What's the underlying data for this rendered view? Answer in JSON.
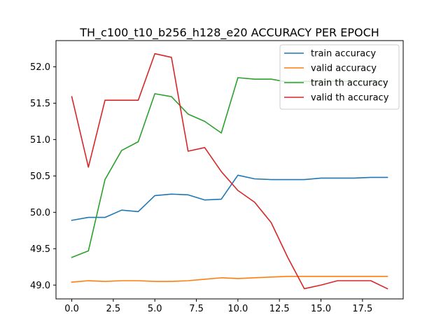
{
  "chart_data": {
    "type": "line",
    "title": "TH_c100_t10_b256_h128_e20 ACCURACY PER EPOCH",
    "xlabel": "",
    "ylabel": "",
    "x": [
      0,
      1,
      2,
      3,
      4,
      5,
      6,
      7,
      8,
      9,
      10,
      11,
      12,
      13,
      14,
      15,
      16,
      17,
      18,
      19
    ],
    "xlim": [
      -0.95,
      19.95
    ],
    "ylim": [
      48.81,
      52.36
    ],
    "xticks": [
      0.0,
      2.5,
      5.0,
      7.5,
      10.0,
      12.5,
      15.0,
      17.5
    ],
    "xtick_labels": [
      "0.0",
      "2.5",
      "5.0",
      "7.5",
      "10.0",
      "12.5",
      "15.0",
      "17.5"
    ],
    "yticks": [
      49.0,
      49.5,
      50.0,
      50.5,
      51.0,
      51.5,
      52.0
    ],
    "ytick_labels": [
      "49.0",
      "49.5",
      "50.0",
      "50.5",
      "51.0",
      "51.5",
      "52.0"
    ],
    "grid": false,
    "legend_position": "top-right",
    "series": [
      {
        "name": "train accuracy",
        "color": "#1f77b4",
        "values": [
          49.89,
          49.93,
          49.93,
          50.03,
          50.01,
          50.23,
          50.25,
          50.24,
          50.17,
          50.18,
          50.51,
          50.46,
          50.45,
          50.45,
          50.45,
          50.47,
          50.47,
          50.47,
          50.48,
          50.48
        ]
      },
      {
        "name": "valid accuracy",
        "color": "#ff7f0e",
        "values": [
          49.04,
          49.06,
          49.05,
          49.06,
          49.06,
          49.05,
          49.05,
          49.06,
          49.08,
          49.1,
          49.09,
          49.1,
          49.11,
          49.12,
          49.12,
          49.12,
          49.12,
          49.12,
          49.12,
          49.12
        ]
      },
      {
        "name": "train th accuracy",
        "color": "#2ca02c",
        "values": [
          49.38,
          49.47,
          50.45,
          50.85,
          50.97,
          51.63,
          51.59,
          51.35,
          51.25,
          51.09,
          51.85,
          51.83,
          51.83,
          51.79,
          51.8,
          51.8,
          51.8,
          51.8,
          51.8,
          51.8
        ]
      },
      {
        "name": "valid th accuracy",
        "color": "#d62728",
        "values": [
          51.59,
          50.62,
          51.54,
          51.54,
          51.54,
          52.18,
          52.13,
          50.84,
          50.89,
          50.56,
          50.3,
          50.14,
          49.86,
          49.38,
          48.95,
          49.0,
          49.06,
          49.06,
          49.06,
          48.95
        ]
      }
    ]
  }
}
